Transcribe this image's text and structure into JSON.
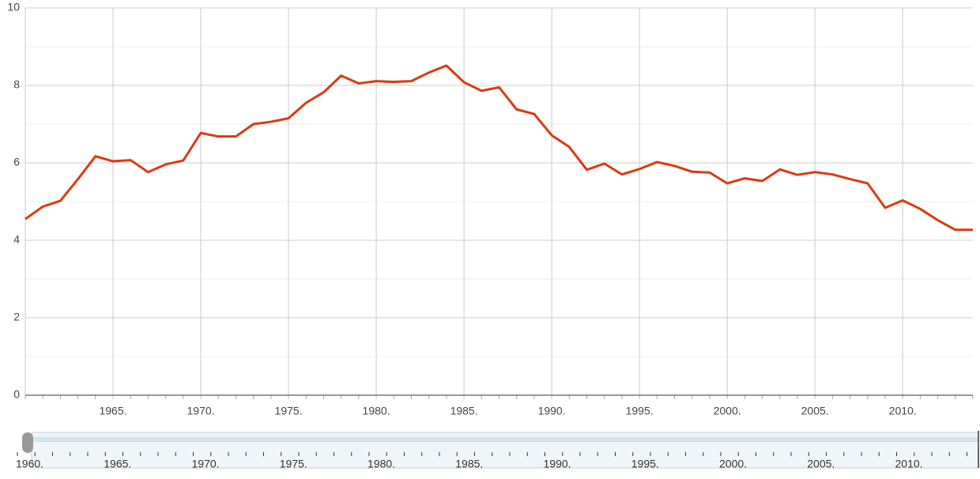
{
  "chart_data": {
    "type": "line",
    "color": "#dc3912",
    "x": [
      1960,
      1961,
      1962,
      1963,
      1964,
      1965,
      1966,
      1967,
      1968,
      1969,
      1970,
      1971,
      1972,
      1973,
      1974,
      1975,
      1976,
      1977,
      1978,
      1979,
      1980,
      1981,
      1982,
      1983,
      1984,
      1985,
      1986,
      1987,
      1988,
      1989,
      1990,
      1991,
      1992,
      1993,
      1994,
      1995,
      1996,
      1997,
      1998,
      1999,
      2000,
      2001,
      2002,
      2003,
      2004,
      2005,
      2006,
      2007,
      2008,
      2009,
      2010,
      2011,
      2012,
      2013,
      2014
    ],
    "values": [
      4.55,
      4.87,
      5.02,
      5.58,
      6.17,
      6.04,
      6.07,
      5.76,
      5.96,
      6.06,
      6.77,
      6.68,
      6.68,
      7.0,
      7.06,
      7.15,
      7.55,
      7.82,
      8.25,
      8.05,
      8.11,
      8.09,
      8.11,
      8.33,
      8.51,
      8.08,
      7.86,
      7.95,
      7.38,
      7.26,
      6.71,
      6.41,
      5.82,
      5.98,
      5.7,
      5.84,
      6.02,
      5.92,
      5.77,
      5.75,
      5.47,
      5.6,
      5.53,
      5.83,
      5.69,
      5.76,
      5.7,
      5.58,
      5.47,
      4.84,
      5.03,
      4.81,
      4.52,
      4.27,
      4.27
    ],
    "xlim": [
      1960,
      2014
    ],
    "xticks": [
      {
        "value": 1965,
        "label": "1965."
      },
      {
        "value": 1970,
        "label": "1970."
      },
      {
        "value": 1975,
        "label": "1975."
      },
      {
        "value": 1980,
        "label": "1980."
      },
      {
        "value": 1985,
        "label": "1985."
      },
      {
        "value": 1990,
        "label": "1990."
      },
      {
        "value": 1995,
        "label": "1995."
      },
      {
        "value": 2000,
        "label": "2000."
      },
      {
        "value": 2005,
        "label": "2005."
      },
      {
        "value": 2010,
        "label": "2010."
      }
    ],
    "ylim": [
      0,
      10
    ],
    "yticks": [
      0,
      2,
      4,
      6,
      8,
      10
    ],
    "minor_yticks": [
      1,
      3,
      5,
      7,
      9
    ],
    "grid": true,
    "slider_ticks": [
      {
        "value": 1960,
        "label": "1960."
      },
      {
        "value": 1965,
        "label": "1965."
      },
      {
        "value": 1970,
        "label": "1970."
      },
      {
        "value": 1975,
        "label": "1975."
      },
      {
        "value": 1980,
        "label": "1980."
      },
      {
        "value": 1985,
        "label": "1985."
      },
      {
        "value": 1990,
        "label": "1990."
      },
      {
        "value": 1995,
        "label": "1995."
      },
      {
        "value": 2000,
        "label": "2000."
      },
      {
        "value": 2005,
        "label": "2005."
      },
      {
        "value": 2010,
        "label": "2010."
      }
    ]
  }
}
